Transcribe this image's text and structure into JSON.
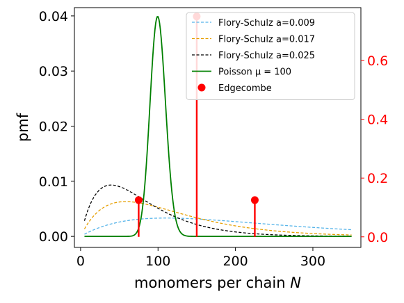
{
  "chart_data": {
    "type": "line",
    "xlabel": "monomers per chain N",
    "ylabel": "pmf",
    "xlim": [
      -8,
      362
    ],
    "ylim": [
      -0.002,
      0.0415
    ],
    "y2lim": [
      -0.036,
      0.78
    ],
    "x_ticks": [
      0,
      100,
      200,
      300
    ],
    "x_tick_labels": [
      "0",
      "100",
      "200",
      "300"
    ],
    "y_ticks": [
      0.0,
      0.01,
      0.02,
      0.03,
      0.04
    ],
    "y_tick_labels": [
      "0.00",
      "0.01",
      "0.02",
      "0.03",
      "0.04"
    ],
    "y2_ticks": [
      0.0,
      0.2,
      0.4,
      0.6
    ],
    "y2_tick_labels": [
      "0.0",
      "0.2",
      "0.4",
      "0.6"
    ],
    "x_range": [
      5,
      350
    ],
    "grid": false,
    "legend_position": "top-right",
    "series": [
      {
        "name": "Flory-Schulz a=0.009",
        "kind": "flory-schulz",
        "a": 0.009,
        "color": "#56b4e9",
        "style": "dashed",
        "axis": "left"
      },
      {
        "name": "Flory-Schulz a=0.017",
        "kind": "flory-schulz",
        "a": 0.017,
        "color": "#e69f00",
        "style": "dashed",
        "axis": "left"
      },
      {
        "name": "Flory-Schulz a=0.025",
        "kind": "flory-schulz",
        "a": 0.025,
        "color": "#000000",
        "style": "dashed",
        "axis": "left"
      },
      {
        "name": "Poisson μ = 100",
        "kind": "poisson",
        "mu": 100,
        "color": "#008000",
        "style": "solid",
        "axis": "left"
      },
      {
        "name": "Edgecombe",
        "kind": "stem",
        "color": "#ff0000",
        "axis": "right",
        "x": [
          75,
          150,
          225
        ],
        "y": [
          0.125,
          0.75,
          0.125
        ]
      }
    ]
  },
  "colors": {
    "right_axis": "#ff0000"
  }
}
